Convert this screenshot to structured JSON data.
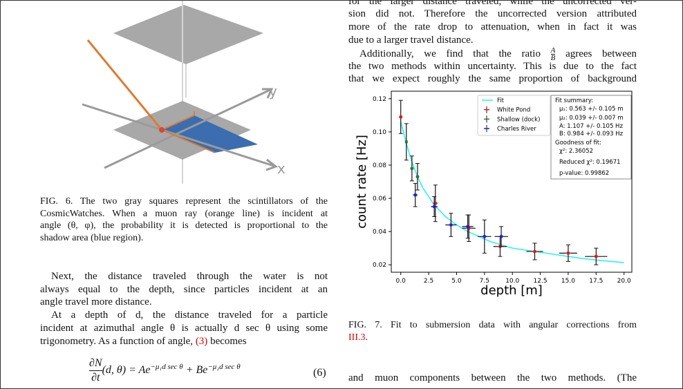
{
  "figure6": {
    "axis_y": "y",
    "axis_x": "x",
    "caption": [
      "FIG. 6. The two gray squares represent the scintillators of the",
      "CosmicWatches. When a muon ray (orange line) is incident at",
      "angle (θ, φ), the probability it is detected is proportional to the",
      "shadow area (blue region)."
    ]
  },
  "left_text": {
    "p1": [
      "Next, the distance traveled through the water is not",
      "always equal to the depth, since particles incident at an",
      "angle travel more distance."
    ],
    "p2": [
      "At a depth of d, the distance traveled for a particle",
      "incident at azimuthal angle θ is actually d sec θ using some",
      [
        "trigonometry. As a function of angle,",
        "(3)",
        "becomes"
      ]
    ]
  },
  "equation": {
    "num": "∂N",
    "den": "∂t",
    "args": "(d, θ) = Ae",
    "exp1": "−μ₁d sec θ",
    "plus": " + Be",
    "exp2": "−μ₂d sec θ",
    "number": "(6)"
  },
  "right_text": {
    "p1": [
      "for the larger distance traveled, while the uncorrected ver-",
      "sion did not. Therefore the uncorrected version attributed",
      "more of the rate drop to attenuation, when in fact it was",
      "due to a larger travel distance."
    ],
    "p2": [
      [
        "Additionally, we find that the ratio",
        "A",
        "B",
        "agrees between"
      ],
      "the two methods within uncertainty. This is due to the fact",
      "that we expect roughly the same proportion of background"
    ],
    "p3": [
      "and muon components between the two methods.  (The"
    ]
  },
  "figure7": {
    "caption": [
      "FIG. 7. Fit to submersion data with angular corrections from",
      [
        "III.3",
        "."
      ]
    ]
  },
  "chart_data": {
    "type": "errorbar",
    "xlabel": "depth [m]",
    "ylabel": "count rate [Hz]",
    "xlim": [
      -0.85,
      20.7
    ],
    "ylim": [
      0.0155,
      0.1245
    ],
    "xticks": [
      {
        "value": 0,
        "label": "0.0"
      },
      {
        "value": 2.5,
        "label": "2.5"
      },
      {
        "value": 5,
        "label": "5.0"
      },
      {
        "value": 7.5,
        "label": "7.5"
      },
      {
        "value": 10,
        "label": "10.0"
      },
      {
        "value": 12.5,
        "label": "12.5"
      },
      {
        "value": 15,
        "label": "15.0"
      },
      {
        "value": 17.5,
        "label": "17.5"
      },
      {
        "value": 20,
        "label": "20.0"
      }
    ],
    "yticks": [
      0.02,
      0.04,
      0.06,
      0.08,
      {
        "value": 0.1,
        "label": "0.10"
      },
      0.12
    ],
    "series": [
      {
        "name": "Fit",
        "color": "#2ef0f0",
        "x": [
          0,
          0.5,
          1,
          1.5,
          2,
          3,
          4,
          5,
          6,
          7,
          8,
          10,
          12,
          14,
          16,
          18,
          20
        ],
        "values": [
          0.106,
          0.093,
          0.082,
          0.073,
          0.066,
          0.056,
          0.049,
          0.044,
          0.04,
          0.037,
          0.034,
          0.03,
          0.028,
          0.026,
          0.024,
          0.0225,
          0.0213
        ]
      },
      {
        "name": "White Pond",
        "color": "#e8111b",
        "x": [
          0,
          3.1,
          6.1,
          8.9,
          12,
          15,
          17.5
        ],
        "values": [
          0.109,
          0.057,
          0.042,
          0.031,
          0.028,
          0.027,
          0.025
        ],
        "yerr": [
          0.01,
          0.011,
          0.008,
          0.006,
          0.005,
          0.005,
          0.005
        ],
        "xerr": [
          0.15,
          0.2,
          0.6,
          0.6,
          0.75,
          0.8,
          1.0
        ]
      },
      {
        "name": "Shallow (dock)",
        "color": "#2a7a2a",
        "x": [
          0.5,
          1.0,
          1.5
        ],
        "values": [
          0.094,
          0.078,
          0.073
        ],
        "yerr": [
          0.011,
          0.0075,
          0.008
        ],
        "xerr": [
          0.1,
          0.15,
          0.15
        ]
      },
      {
        "name": "Charles River",
        "color": "#1f1fd0",
        "x": [
          1.3,
          3.0,
          4.5,
          6.0,
          7.5,
          9.0
        ],
        "values": [
          0.062,
          0.055,
          0.044,
          0.043,
          0.037,
          0.037
        ],
        "yerr": [
          0.007,
          0.006,
          0.007,
          0.007,
          0.01,
          0.006
        ],
        "xerr": [
          0.2,
          0.3,
          0.5,
          0.5,
          0.6,
          0.6
        ]
      }
    ],
    "summary": [
      "Fit summary:",
      "μ₁: 0.563 +/- 0.105 m",
      "μ₂: 0.039 +/- 0.007 m",
      "A: 1.107 +/- 0.105 Hz",
      "B: 0.984 +/- 0.093 Hz",
      "Goodness of fit:",
      "χ²: 2.36052",
      "Reduced χ²: 0.19671",
      "p-value: 0.99862"
    ]
  }
}
